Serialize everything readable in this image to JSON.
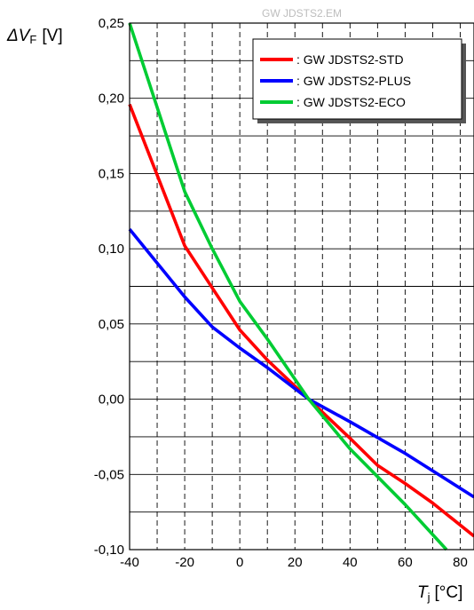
{
  "watermark": "GW JDSTS2.EM",
  "chart_data": {
    "type": "line",
    "title": "",
    "ylabel": {
      "symbol": "ΔV",
      "sub": "F",
      "unit": "[V]"
    },
    "xlabel": {
      "symbol": "T",
      "sub": "j",
      "unit": "[°C]"
    },
    "xlim": [
      -40,
      85
    ],
    "ylim": [
      -0.1,
      0.25
    ],
    "x_ticks": [
      -40,
      -20,
      0,
      20,
      40,
      60,
      80
    ],
    "x_tick_labels": [
      "-40",
      "-20",
      "0",
      "20",
      "40",
      "60",
      "80"
    ],
    "y_ticks": [
      -0.1,
      -0.05,
      0.0,
      0.05,
      0.1,
      0.15,
      0.2,
      0.25
    ],
    "y_tick_labels": [
      "-0,10",
      "-0,05",
      "0,00",
      "0,05",
      "0,10",
      "0,15",
      "0,20",
      "0,25"
    ],
    "grid": true,
    "legend_position": "top-right",
    "series": [
      {
        "name": ": GW JDSTS2-STD",
        "color": "#ff0000",
        "x": [
          -40,
          -20,
          -10,
          0,
          10,
          25,
          40,
          50,
          60,
          70,
          85
        ],
        "y": [
          0.196,
          0.102,
          0.074,
          0.046,
          0.026,
          0.0,
          -0.026,
          -0.044,
          -0.056,
          -0.069,
          -0.091
        ]
      },
      {
        "name": ": GW JDSTS2-PLUS",
        "color": "#0000ff",
        "x": [
          -40,
          -20,
          -10,
          0,
          10,
          25,
          40,
          60,
          85
        ],
        "y": [
          0.113,
          0.068,
          0.048,
          0.034,
          0.021,
          0.0,
          -0.015,
          -0.036,
          -0.065
        ]
      },
      {
        "name": ": GW JDSTS2-ECO",
        "color": "#00cc33",
        "x": [
          -40,
          -20,
          -10,
          0,
          10,
          25,
          40,
          60,
          75
        ],
        "y": [
          0.25,
          0.138,
          0.1,
          0.065,
          0.04,
          0.0,
          -0.033,
          -0.07,
          -0.1
        ]
      }
    ]
  }
}
